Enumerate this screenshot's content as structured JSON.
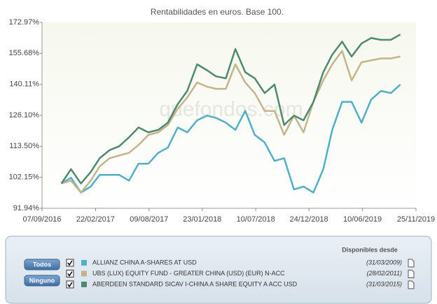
{
  "chart_data": {
    "type": "line",
    "title": "Rentabilidades en euros. Base 100.",
    "watermark": "quefondos.com",
    "log_scale": true,
    "x": [
      "2016-11-07",
      "2016-12-07",
      "2017-01-07",
      "2017-02-07",
      "2017-03-07",
      "2017-04-07",
      "2017-05-07",
      "2017-06-07",
      "2017-07-07",
      "2017-08-07",
      "2017-09-07",
      "2017-10-07",
      "2017-11-07",
      "2017-12-07",
      "2018-01-07",
      "2018-02-07",
      "2018-03-07",
      "2018-04-07",
      "2018-05-07",
      "2018-06-07",
      "2018-07-07",
      "2018-08-07",
      "2018-09-07",
      "2018-10-07",
      "2018-11-07",
      "2018-12-07",
      "2019-01-07",
      "2019-02-07",
      "2019-03-07",
      "2019-04-07",
      "2019-05-07",
      "2019-06-07",
      "2019-07-07",
      "2019-08-07",
      "2019-09-07",
      "2019-10-07"
    ],
    "xlim": [
      "2016-09-07",
      "2019-11-25"
    ],
    "xticks": [
      {
        "value": "2016-09-07",
        "label": "07/09/2016"
      },
      {
        "value": "2017-02-22",
        "label": "22/02/2017"
      },
      {
        "value": "2017-08-09",
        "label": "09/08/2017"
      },
      {
        "value": "2018-01-23",
        "label": "23/01/2018"
      },
      {
        "value": "2018-07-10",
        "label": "10/07/2018"
      },
      {
        "value": "2018-12-24",
        "label": "24/12/2018"
      },
      {
        "value": "2019-06-10",
        "label": "10/06/2019"
      },
      {
        "value": "2019-11-25",
        "label": "25/11/2019"
      }
    ],
    "ylim": [
      91.94,
      172.97
    ],
    "yticks": [
      {
        "value": 91.94,
        "label": "91.94%"
      },
      {
        "value": 102.15,
        "label": "102.15%"
      },
      {
        "value": 113.5,
        "label": "113.50%"
      },
      {
        "value": 126.1,
        "label": "126.10%"
      },
      {
        "value": 140.11,
        "label": "140.11%"
      },
      {
        "value": 155.68,
        "label": "155.68%"
      },
      {
        "value": 172.97,
        "label": "172.97%"
      }
    ],
    "legend_header": "Disponibles desde",
    "buttons": [
      "Todos",
      "Ninguno"
    ],
    "series": [
      {
        "name": "ALLIANZ CHINA A-SHARES AT USD",
        "available_since": "(31/03/2009)",
        "color": "#4fb0c6",
        "values": [
          100,
          102,
          97,
          99,
          103,
          103,
          103,
          101,
          107,
          107,
          111,
          113,
          121,
          119,
          124,
          126,
          125,
          123,
          120,
          128,
          118,
          115,
          108,
          109,
          98,
          99,
          97,
          105,
          120,
          132,
          132,
          123,
          133,
          137,
          136,
          140
        ]
      },
      {
        "name": "UBS (LUX) EQUITY FUND - GREATER CHINA (USD) (EUR) N-ACC",
        "available_since": "(28/02/2011)",
        "color": "#c4b48c",
        "values": [
          100,
          101,
          97,
          101,
          106,
          109,
          110,
          111,
          114,
          118,
          119,
          122,
          129,
          134,
          141,
          139,
          138,
          138,
          150,
          141,
          136,
          128,
          128,
          118,
          126,
          119,
          132,
          142,
          150,
          157,
          142,
          151,
          152,
          153,
          153,
          154
        ]
      },
      {
        "name": "ABERDEEN STANDARD SICAV I-CHINA A SHARE EQUITY A ACC USD",
        "available_since": "(31/03/2015)",
        "color": "#4e8a6f",
        "values": [
          100,
          105,
          100,
          104,
          109,
          112,
          113.5,
          117,
          121,
          119,
          120,
          123,
          131,
          137,
          150,
          147,
          144,
          143,
          158,
          146,
          143,
          136,
          140,
          122,
          126,
          124,
          132,
          146,
          155,
          162,
          154,
          161,
          164,
          163,
          163,
          166
        ]
      }
    ]
  }
}
